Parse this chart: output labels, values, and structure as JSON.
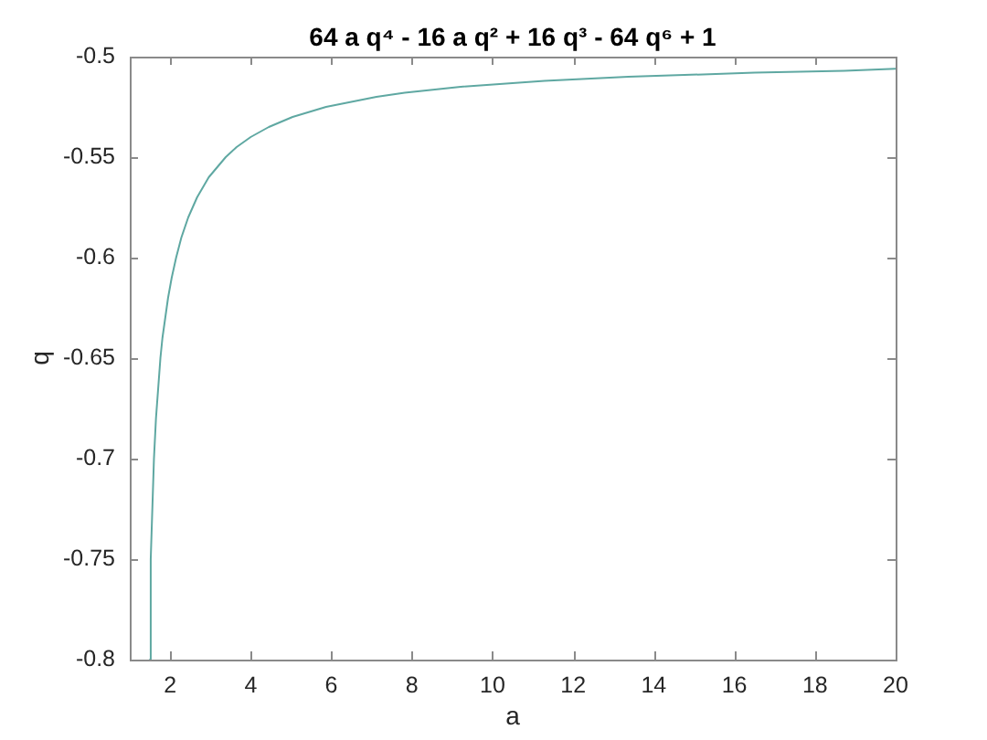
{
  "chart_data": {
    "type": "line",
    "title": "64 a q⁴ - 16 a q² + 16 q³ - 64 q⁶ + 1",
    "xlabel": "a",
    "ylabel": "q",
    "series": [
      {
        "color": "#5fa8a2",
        "x": [
          1.5,
          1.52,
          1.6,
          1.65,
          1.76,
          1.81,
          1.95,
          2.04,
          2.15,
          2.28,
          2.45,
          2.67,
          2.96,
          3.38,
          3.65,
          4.0,
          4.45,
          5.04,
          5.87,
          7.12,
          7.82,
          9.21,
          11.29,
          13.37,
          16.5,
          18.73,
          20
        ],
        "values": [
          -0.8,
          -0.75,
          -0.7,
          -0.68,
          -0.65,
          -0.64,
          -0.62,
          -0.61,
          -0.6,
          -0.59,
          -0.58,
          -0.57,
          -0.56,
          -0.55,
          -0.545,
          -0.54,
          -0.535,
          -0.53,
          -0.525,
          -0.52,
          -0.518,
          -0.515,
          -0.512,
          -0.51,
          -0.508,
          -0.507,
          -0.506
        ]
      }
    ],
    "xlim": [
      1,
      20
    ],
    "xticks": [
      2,
      4,
      6,
      8,
      10,
      12,
      14,
      16,
      18,
      20
    ],
    "ylim": [
      -0.8,
      -0.5
    ],
    "yticks": [
      -0.8,
      -0.75,
      -0.7,
      -0.65,
      -0.6,
      -0.55,
      -0.5
    ],
    "grid": false,
    "legend": false,
    "marker": "none",
    "line_style": "solid"
  }
}
